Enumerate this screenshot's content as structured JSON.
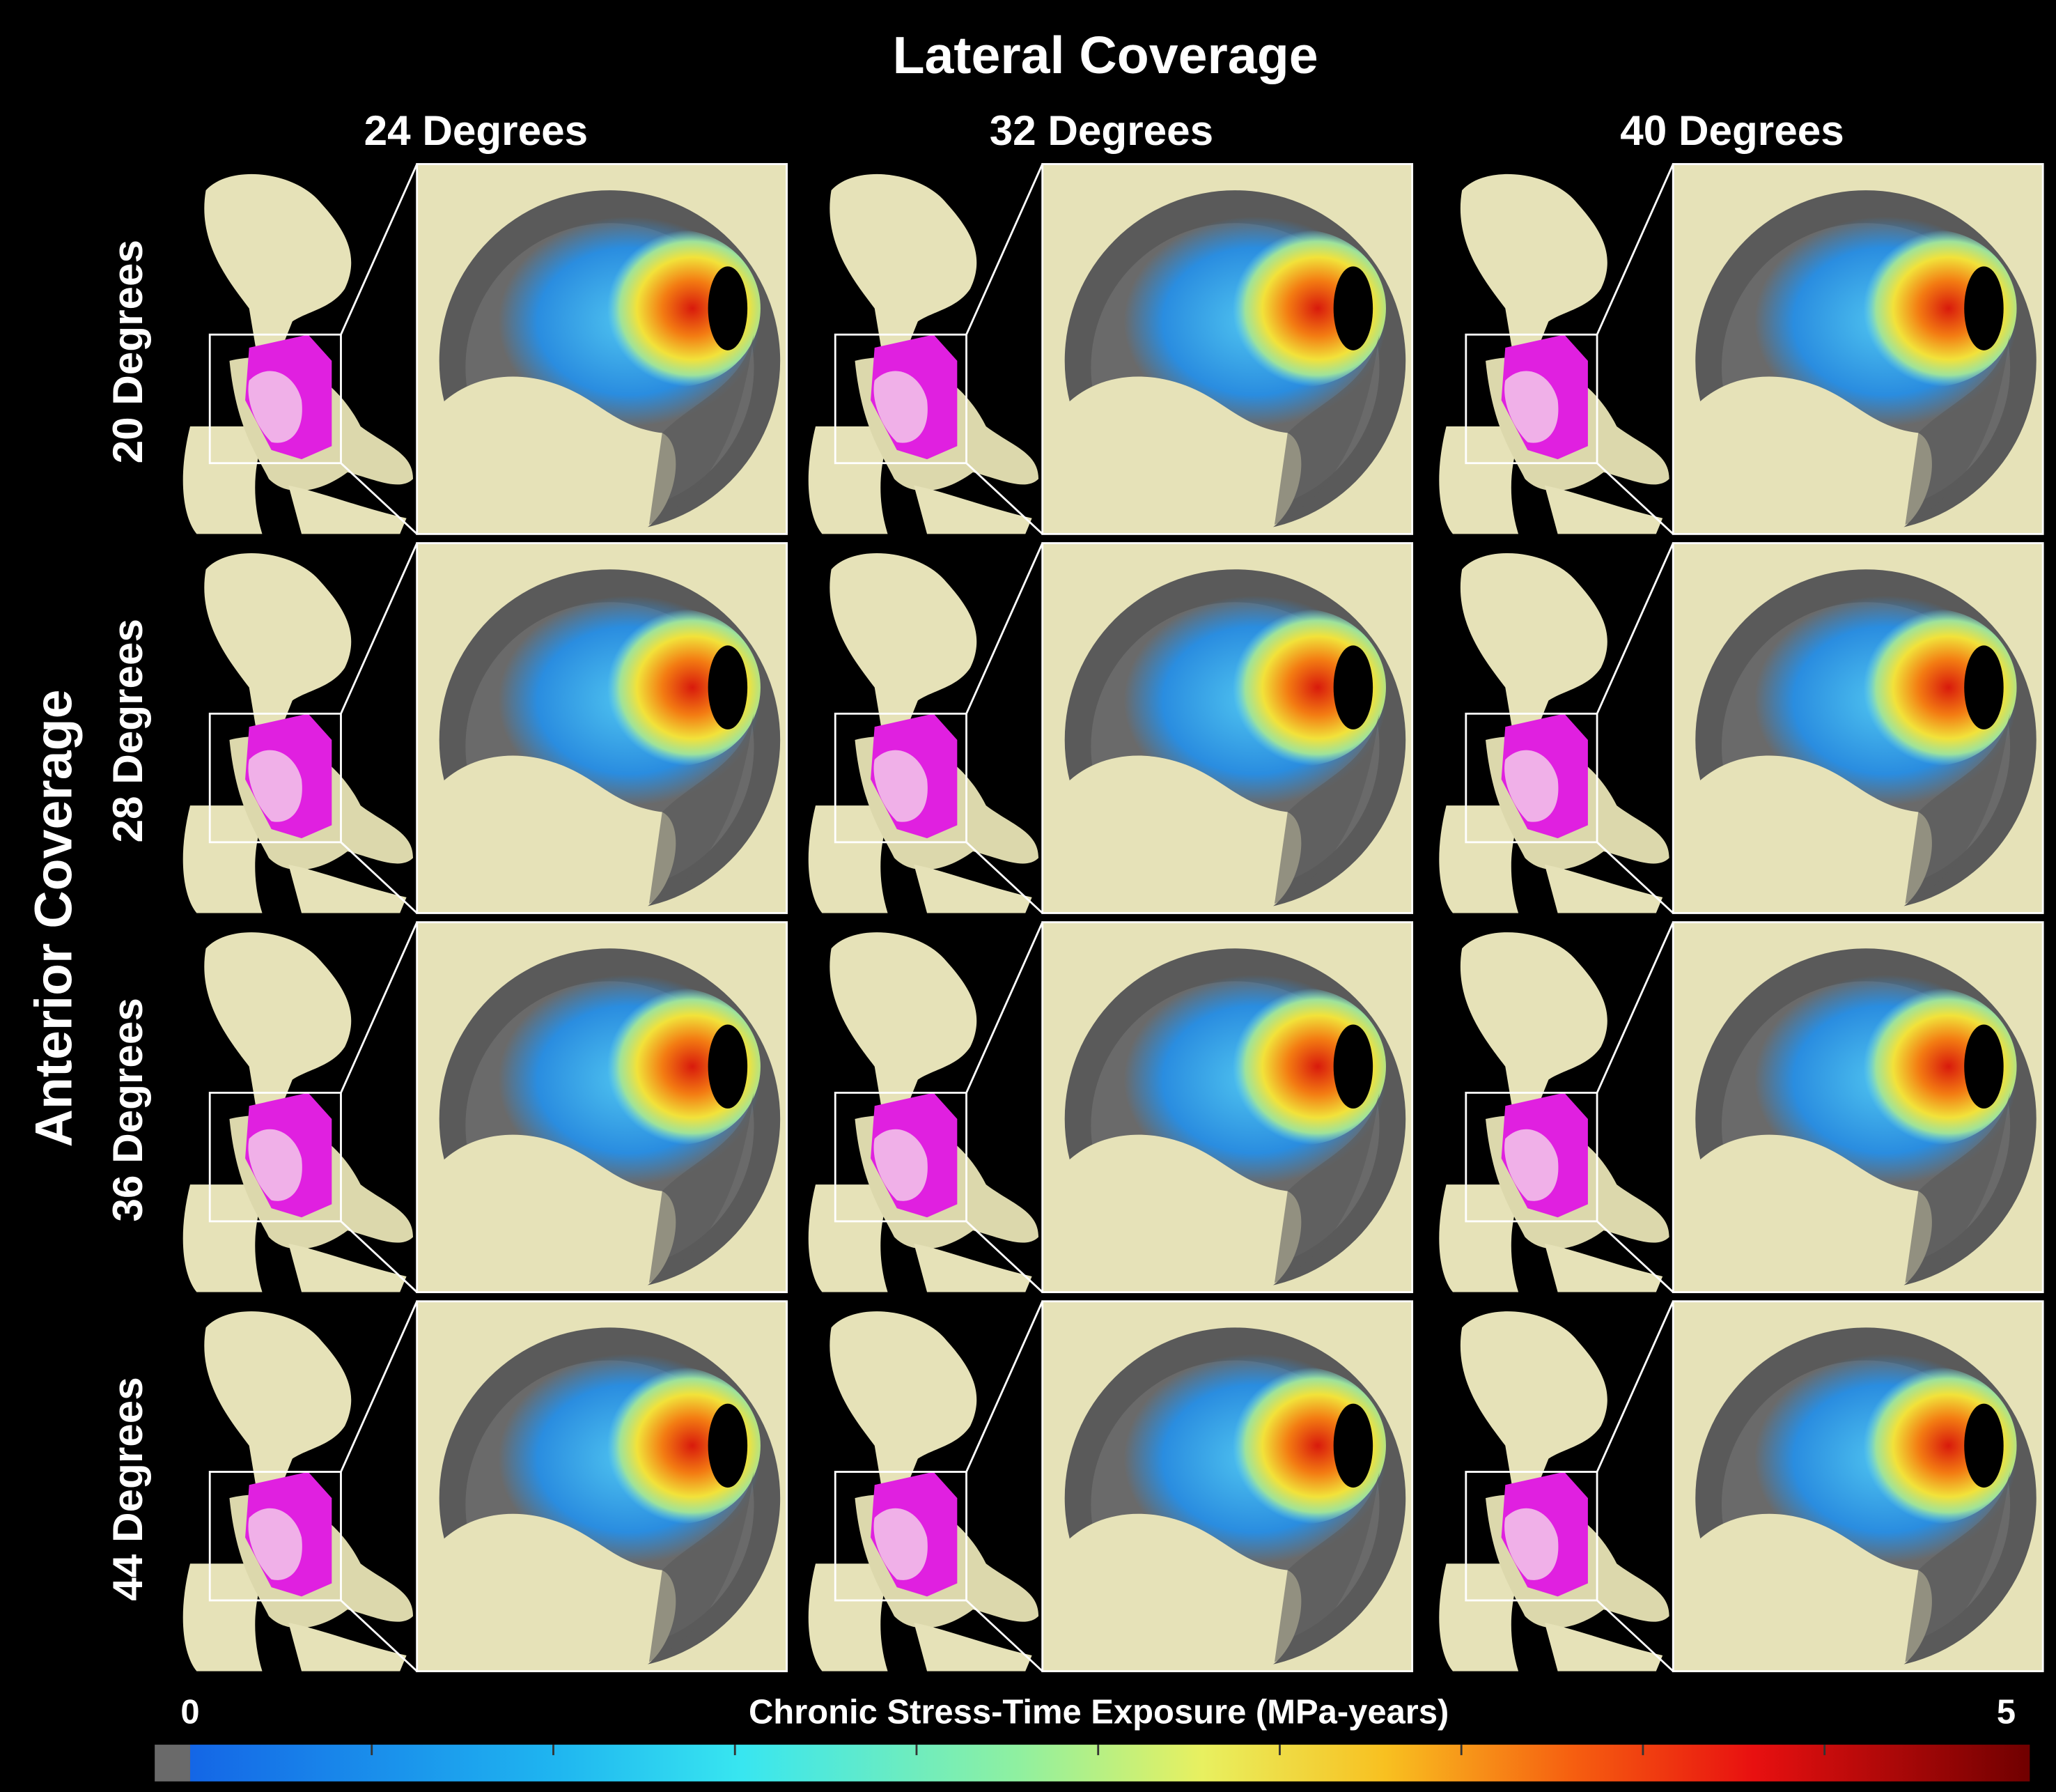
{
  "title": "Lateral Coverage",
  "columns": [
    "24 Degrees",
    "32 Degrees",
    "40 Degrees"
  ],
  "row_axis_title": "Anterior Coverage",
  "rows": [
    "20 Degrees",
    "28 Degrees",
    "36 Degrees",
    "44 Degrees"
  ],
  "colorbar": {
    "title": "Chronic Stress-Time Exposure (MPa-years)",
    "min": 0,
    "max": 5,
    "ticks": [
      0.5,
      1,
      1.5,
      2,
      2.5,
      3,
      3.5,
      4,
      4.5
    ]
  }
}
